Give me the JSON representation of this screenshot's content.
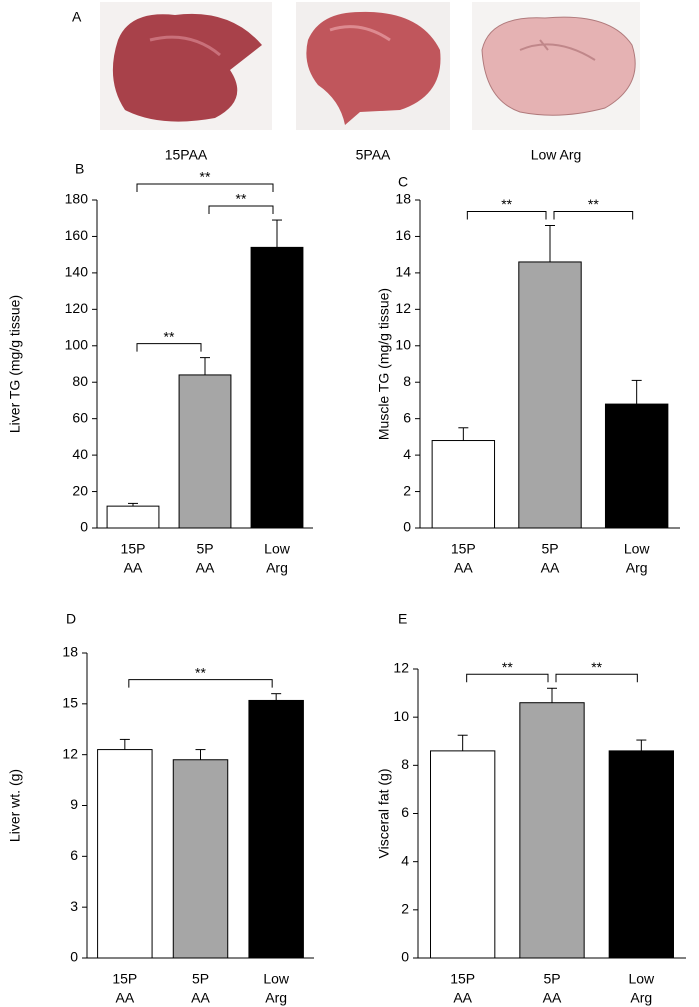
{
  "panel_a": {
    "label": "A",
    "captions": [
      "15PAA",
      "5PAA",
      "Low Arg"
    ]
  },
  "chart_data": [
    {
      "panel": "B",
      "type": "bar",
      "ylabel": "Liver TG (mg/g tissue)",
      "categories": [
        [
          "15P",
          "AA"
        ],
        [
          "5P",
          "AA"
        ],
        [
          "Low",
          "Arg"
        ]
      ],
      "values": [
        12,
        84,
        154
      ],
      "errors": [
        1.5,
        9.5,
        15
      ],
      "colors": [
        "#ffffff",
        "#a6a6a6",
        "#000000"
      ],
      "ylim": [
        0,
        180
      ],
      "yticks": [
        0,
        20,
        40,
        60,
        80,
        100,
        120,
        140,
        160,
        180
      ],
      "annotations": [
        {
          "text": "**",
          "from": 0,
          "to": 1
        },
        {
          "text": "**",
          "from": 1,
          "to": 2
        },
        {
          "text": "**",
          "from": 0,
          "to": 2
        }
      ]
    },
    {
      "panel": "C",
      "type": "bar",
      "ylabel": "Muscle TG (mg/g tissue)",
      "categories": [
        [
          "15P",
          "AA"
        ],
        [
          "5P",
          "AA"
        ],
        [
          "Low",
          "Arg"
        ]
      ],
      "values": [
        4.8,
        14.6,
        6.8
      ],
      "errors": [
        0.7,
        2.0,
        1.3
      ],
      "colors": [
        "#ffffff",
        "#a6a6a6",
        "#000000"
      ],
      "ylim": [
        0,
        18
      ],
      "yticks": [
        0,
        2,
        4,
        6,
        8,
        10,
        12,
        14,
        16,
        18
      ],
      "annotations": [
        {
          "text": "**",
          "from": 0,
          "to": 1
        },
        {
          "text": "**",
          "from": 1,
          "to": 2
        }
      ]
    },
    {
      "panel": "D",
      "type": "bar",
      "ylabel": "Liver wt. (g)",
      "categories": [
        [
          "15P",
          "AA"
        ],
        [
          "5P",
          "AA"
        ],
        [
          "Low",
          "Arg"
        ]
      ],
      "values": [
        12.3,
        11.7,
        15.2
      ],
      "errors": [
        0.6,
        0.6,
        0.4
      ],
      "colors": [
        "#ffffff",
        "#a6a6a6",
        "#000000"
      ],
      "ylim": [
        0,
        18
      ],
      "yticks": [
        0,
        3,
        6,
        9,
        12,
        15,
        18
      ],
      "annotations": [
        {
          "text": "**",
          "from": 0,
          "to": 2
        }
      ]
    },
    {
      "panel": "E",
      "type": "bar",
      "ylabel": "Visceral fat (g)",
      "categories": [
        [
          "15P",
          "AA"
        ],
        [
          "5P",
          "AA"
        ],
        [
          "Low",
          "Arg"
        ]
      ],
      "values": [
        8.6,
        10.6,
        8.6
      ],
      "errors": [
        0.65,
        0.6,
        0.45
      ],
      "colors": [
        "#ffffff",
        "#a6a6a6",
        "#000000"
      ],
      "ylim": [
        0,
        12
      ],
      "yticks": [
        0,
        2,
        4,
        6,
        8,
        10,
        12
      ],
      "annotations": [
        {
          "text": "**",
          "from": 0,
          "to": 1
        },
        {
          "text": "**",
          "from": 1,
          "to": 2
        }
      ]
    }
  ]
}
